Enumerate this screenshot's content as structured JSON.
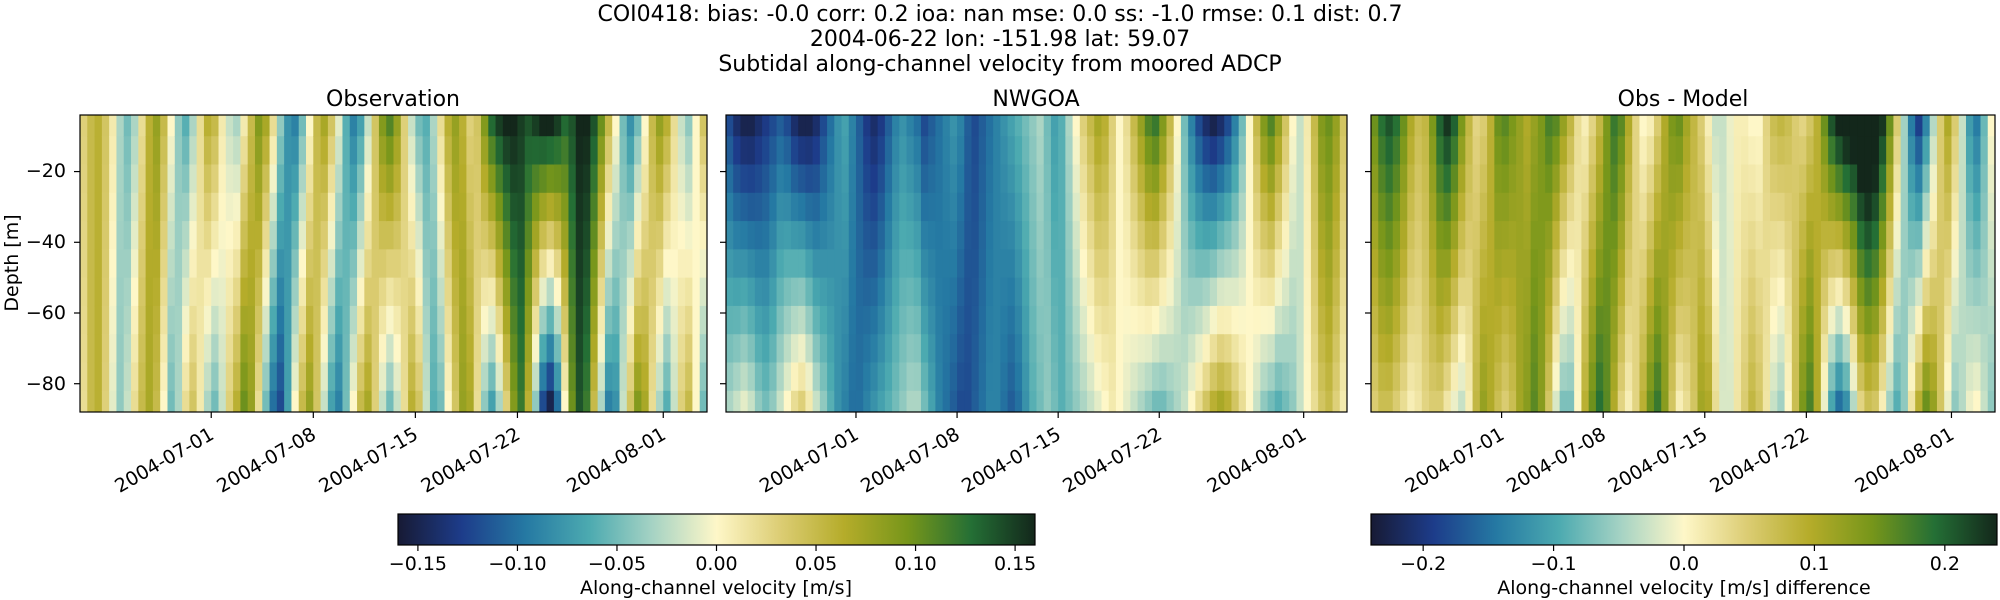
{
  "figure": {
    "title_line1": "COI0418: bias: -0.0  corr: 0.2  ioa: nan  mse: 0.0  ss: -1.0  rmse: 0.1  dist: 0.7",
    "title_line2": "2004-06-22 lon: -151.98 lat: 59.07",
    "title_line3": "Subtidal along-channel velocity from moored ADCP"
  },
  "chart_data": [
    {
      "type": "heatmap",
      "title": "Observation",
      "ylabel": "Depth [m]",
      "ylim": [
        -88,
        -4
      ],
      "yticks": [
        -20,
        -40,
        -60,
        -80
      ],
      "xlim": [
        "2004-06-22",
        "2004-08-04"
      ],
      "xticks": [
        "2004-07-01",
        "2004-07-08",
        "2004-07-15",
        "2004-07-22",
        "2004-08-01"
      ],
      "colormap": "delta",
      "clim": [
        -0.16,
        0.16
      ],
      "time_start": "2004-06-22",
      "time_step_days": 0.5,
      "depth_levels": [
        -6,
        -14,
        -22,
        -30,
        -38,
        -46,
        -54,
        -62,
        -70,
        -78,
        -86
      ],
      "surface_series": [
        0.03,
        0.05,
        0.06,
        0.04,
        0.01,
        -0.03,
        -0.05,
        -0.03,
        0.02,
        0.06,
        0.08,
        0.05,
        0.0,
        -0.04,
        -0.06,
        -0.03,
        0.02,
        0.06,
        0.05,
        0.01,
        -0.02,
        -0.03,
        0.01,
        0.05,
        0.09,
        0.07,
        0.02,
        -0.04,
        -0.08,
        -0.09,
        -0.05,
        0.0,
        0.05,
        0.07,
        0.04,
        -0.01,
        -0.06,
        -0.09,
        -0.07,
        -0.02,
        0.04,
        0.09,
        0.11,
        0.08,
        0.03,
        -0.02,
        -0.05,
        -0.06,
        -0.03,
        0.02,
        0.06,
        0.08,
        0.06,
        0.03,
        0.04,
        0.09,
        0.13,
        0.15,
        0.16,
        0.16,
        0.15,
        0.14,
        0.15,
        0.16,
        0.16,
        0.15,
        0.13,
        0.14,
        0.16,
        0.16,
        0.14,
        0.1,
        0.05,
        0.0,
        -0.05,
        -0.08,
        -0.05,
        0.0,
        0.05,
        0.08,
        0.06,
        0.02,
        -0.02,
        -0.04,
        0.0,
        0.04
      ],
      "bottom_series": [
        0.02,
        0.05,
        0.06,
        0.03,
        -0.01,
        -0.04,
        -0.02,
        0.02,
        0.05,
        0.07,
        0.05,
        0.0,
        -0.05,
        -0.03,
        0.02,
        0.04,
        0.01,
        -0.03,
        -0.05,
        -0.02,
        0.03,
        0.06,
        0.1,
        0.08,
        0.02,
        -0.05,
        -0.1,
        -0.12,
        -0.07,
        0.0,
        0.05,
        0.08,
        0.04,
        -0.02,
        -0.07,
        -0.09,
        -0.05,
        0.0,
        0.05,
        0.07,
        0.03,
        -0.02,
        -0.05,
        -0.02,
        0.02,
        0.06,
        0.04,
        -0.02,
        -0.06,
        -0.05,
        0.0,
        0.04,
        0.08,
        0.07,
        0.02,
        -0.04,
        -0.07,
        -0.03,
        0.03,
        0.09,
        0.12,
        0.06,
        -0.04,
        -0.12,
        -0.15,
        -0.1,
        0.0,
        0.1,
        0.14,
        0.12,
        0.05,
        -0.03,
        -0.09,
        -0.08,
        -0.02,
        0.04,
        0.09,
        0.07,
        0.02,
        -0.03,
        -0.06,
        -0.02,
        0.03,
        0.05,
        0.0,
        -0.05
      ]
    },
    {
      "type": "heatmap",
      "title": "NWGOA",
      "ylim": [
        -88,
        -4
      ],
      "xlim": [
        "2004-06-22",
        "2004-08-04"
      ],
      "xticks": [
        "2004-07-01",
        "2004-07-08",
        "2004-07-15",
        "2004-07-22",
        "2004-08-01"
      ],
      "colormap": "delta",
      "clim": [
        -0.16,
        0.16
      ],
      "time_start": "2004-06-22",
      "time_step_days": 0.5,
      "depth_levels": [
        -6,
        -14,
        -22,
        -30,
        -38,
        -46,
        -54,
        -62,
        -70,
        -78,
        -86
      ],
      "surface_series": [
        -0.12,
        -0.14,
        -0.15,
        -0.15,
        -0.14,
        -0.13,
        -0.12,
        -0.11,
        -0.12,
        -0.14,
        -0.15,
        -0.15,
        -0.14,
        -0.12,
        -0.1,
        -0.08,
        -0.07,
        -0.09,
        -0.11,
        -0.13,
        -0.14,
        -0.13,
        -0.11,
        -0.09,
        -0.08,
        -0.09,
        -0.1,
        -0.12,
        -0.11,
        -0.1,
        -0.09,
        -0.08,
        -0.09,
        -0.11,
        -0.12,
        -0.11,
        -0.1,
        -0.09,
        -0.08,
        -0.07,
        -0.06,
        -0.05,
        -0.04,
        -0.03,
        -0.05,
        -0.07,
        -0.06,
        -0.03,
        0.0,
        0.03,
        0.05,
        0.07,
        0.06,
        0.03,
        0.0,
        0.02,
        0.05,
        0.08,
        0.11,
        0.12,
        0.09,
        0.05,
        0.0,
        -0.05,
        -0.09,
        -0.12,
        -0.14,
        -0.15,
        -0.14,
        -0.12,
        -0.09,
        -0.05,
        0.0,
        0.05,
        0.09,
        0.11,
        0.08,
        0.04,
        0.0,
        -0.02,
        0.01,
        0.05,
        0.09,
        0.1,
        0.08,
        0.04
      ],
      "bottom_series": [
        -0.03,
        -0.02,
        -0.01,
        -0.02,
        -0.04,
        -0.05,
        -0.04,
        -0.02,
        0.0,
        0.02,
        0.03,
        0.01,
        -0.02,
        -0.04,
        -0.06,
        -0.08,
        -0.09,
        -0.1,
        -0.1,
        -0.09,
        -0.08,
        -0.07,
        -0.06,
        -0.05,
        -0.04,
        -0.03,
        -0.03,
        -0.05,
        -0.07,
        -0.09,
        -0.1,
        -0.11,
        -0.12,
        -0.12,
        -0.11,
        -0.1,
        -0.09,
        -0.09,
        -0.1,
        -0.11,
        -0.1,
        -0.08,
        -0.06,
        -0.05,
        -0.04,
        -0.05,
        -0.06,
        -0.05,
        -0.04,
        -0.03,
        -0.02,
        -0.01,
        0.0,
        0.01,
        0.0,
        -0.01,
        -0.02,
        -0.03,
        -0.04,
        -0.05,
        -0.05,
        -0.04,
        -0.03,
        -0.02,
        0.0,
        0.02,
        0.04,
        0.06,
        0.07,
        0.06,
        0.04,
        0.02,
        0.0,
        -0.02,
        -0.04,
        -0.05,
        -0.06,
        -0.05,
        -0.04,
        -0.02,
        0.0,
        0.02,
        0.04,
        0.05,
        0.03,
        0.01
      ]
    },
    {
      "type": "heatmap",
      "title": "Obs - Model",
      "ylim": [
        -88,
        -4
      ],
      "xlim": [
        "2004-06-22",
        "2004-08-04"
      ],
      "xticks": [
        "2004-07-01",
        "2004-07-08",
        "2004-07-15",
        "2004-07-22",
        "2004-08-01"
      ],
      "colormap": "delta",
      "clim": [
        -0.24,
        0.24
      ],
      "derived_from": [
        "Observation",
        "NWGOA"
      ]
    }
  ],
  "colorbars": [
    {
      "label": "Along-channel velocity [m/s]",
      "clim": [
        -0.16,
        0.16
      ],
      "ticks": [
        "−0.15",
        "−0.10",
        "−0.05",
        "0.00",
        "0.05",
        "0.10",
        "0.15"
      ],
      "tick_values": [
        -0.15,
        -0.1,
        -0.05,
        0.0,
        0.05,
        0.1,
        0.15
      ]
    },
    {
      "label": "Along-channel velocity [m/s] difference",
      "clim": [
        -0.24,
        0.24
      ],
      "ticks": [
        "−0.2",
        "−0.1",
        "0.0",
        "0.1",
        "0.2"
      ],
      "tick_values": [
        -0.2,
        -0.1,
        0.0,
        0.1,
        0.2
      ]
    }
  ],
  "ytick_labels": [
    "−20",
    "−40",
    "−60",
    "−80"
  ],
  "colormap_stops": [
    "#171a34",
    "#1d3c8a",
    "#2579a3",
    "#4caab0",
    "#a6d3c4",
    "#fef7c8",
    "#dccd74",
    "#b5ac2a",
    "#77961a",
    "#246f35",
    "#13271b"
  ]
}
